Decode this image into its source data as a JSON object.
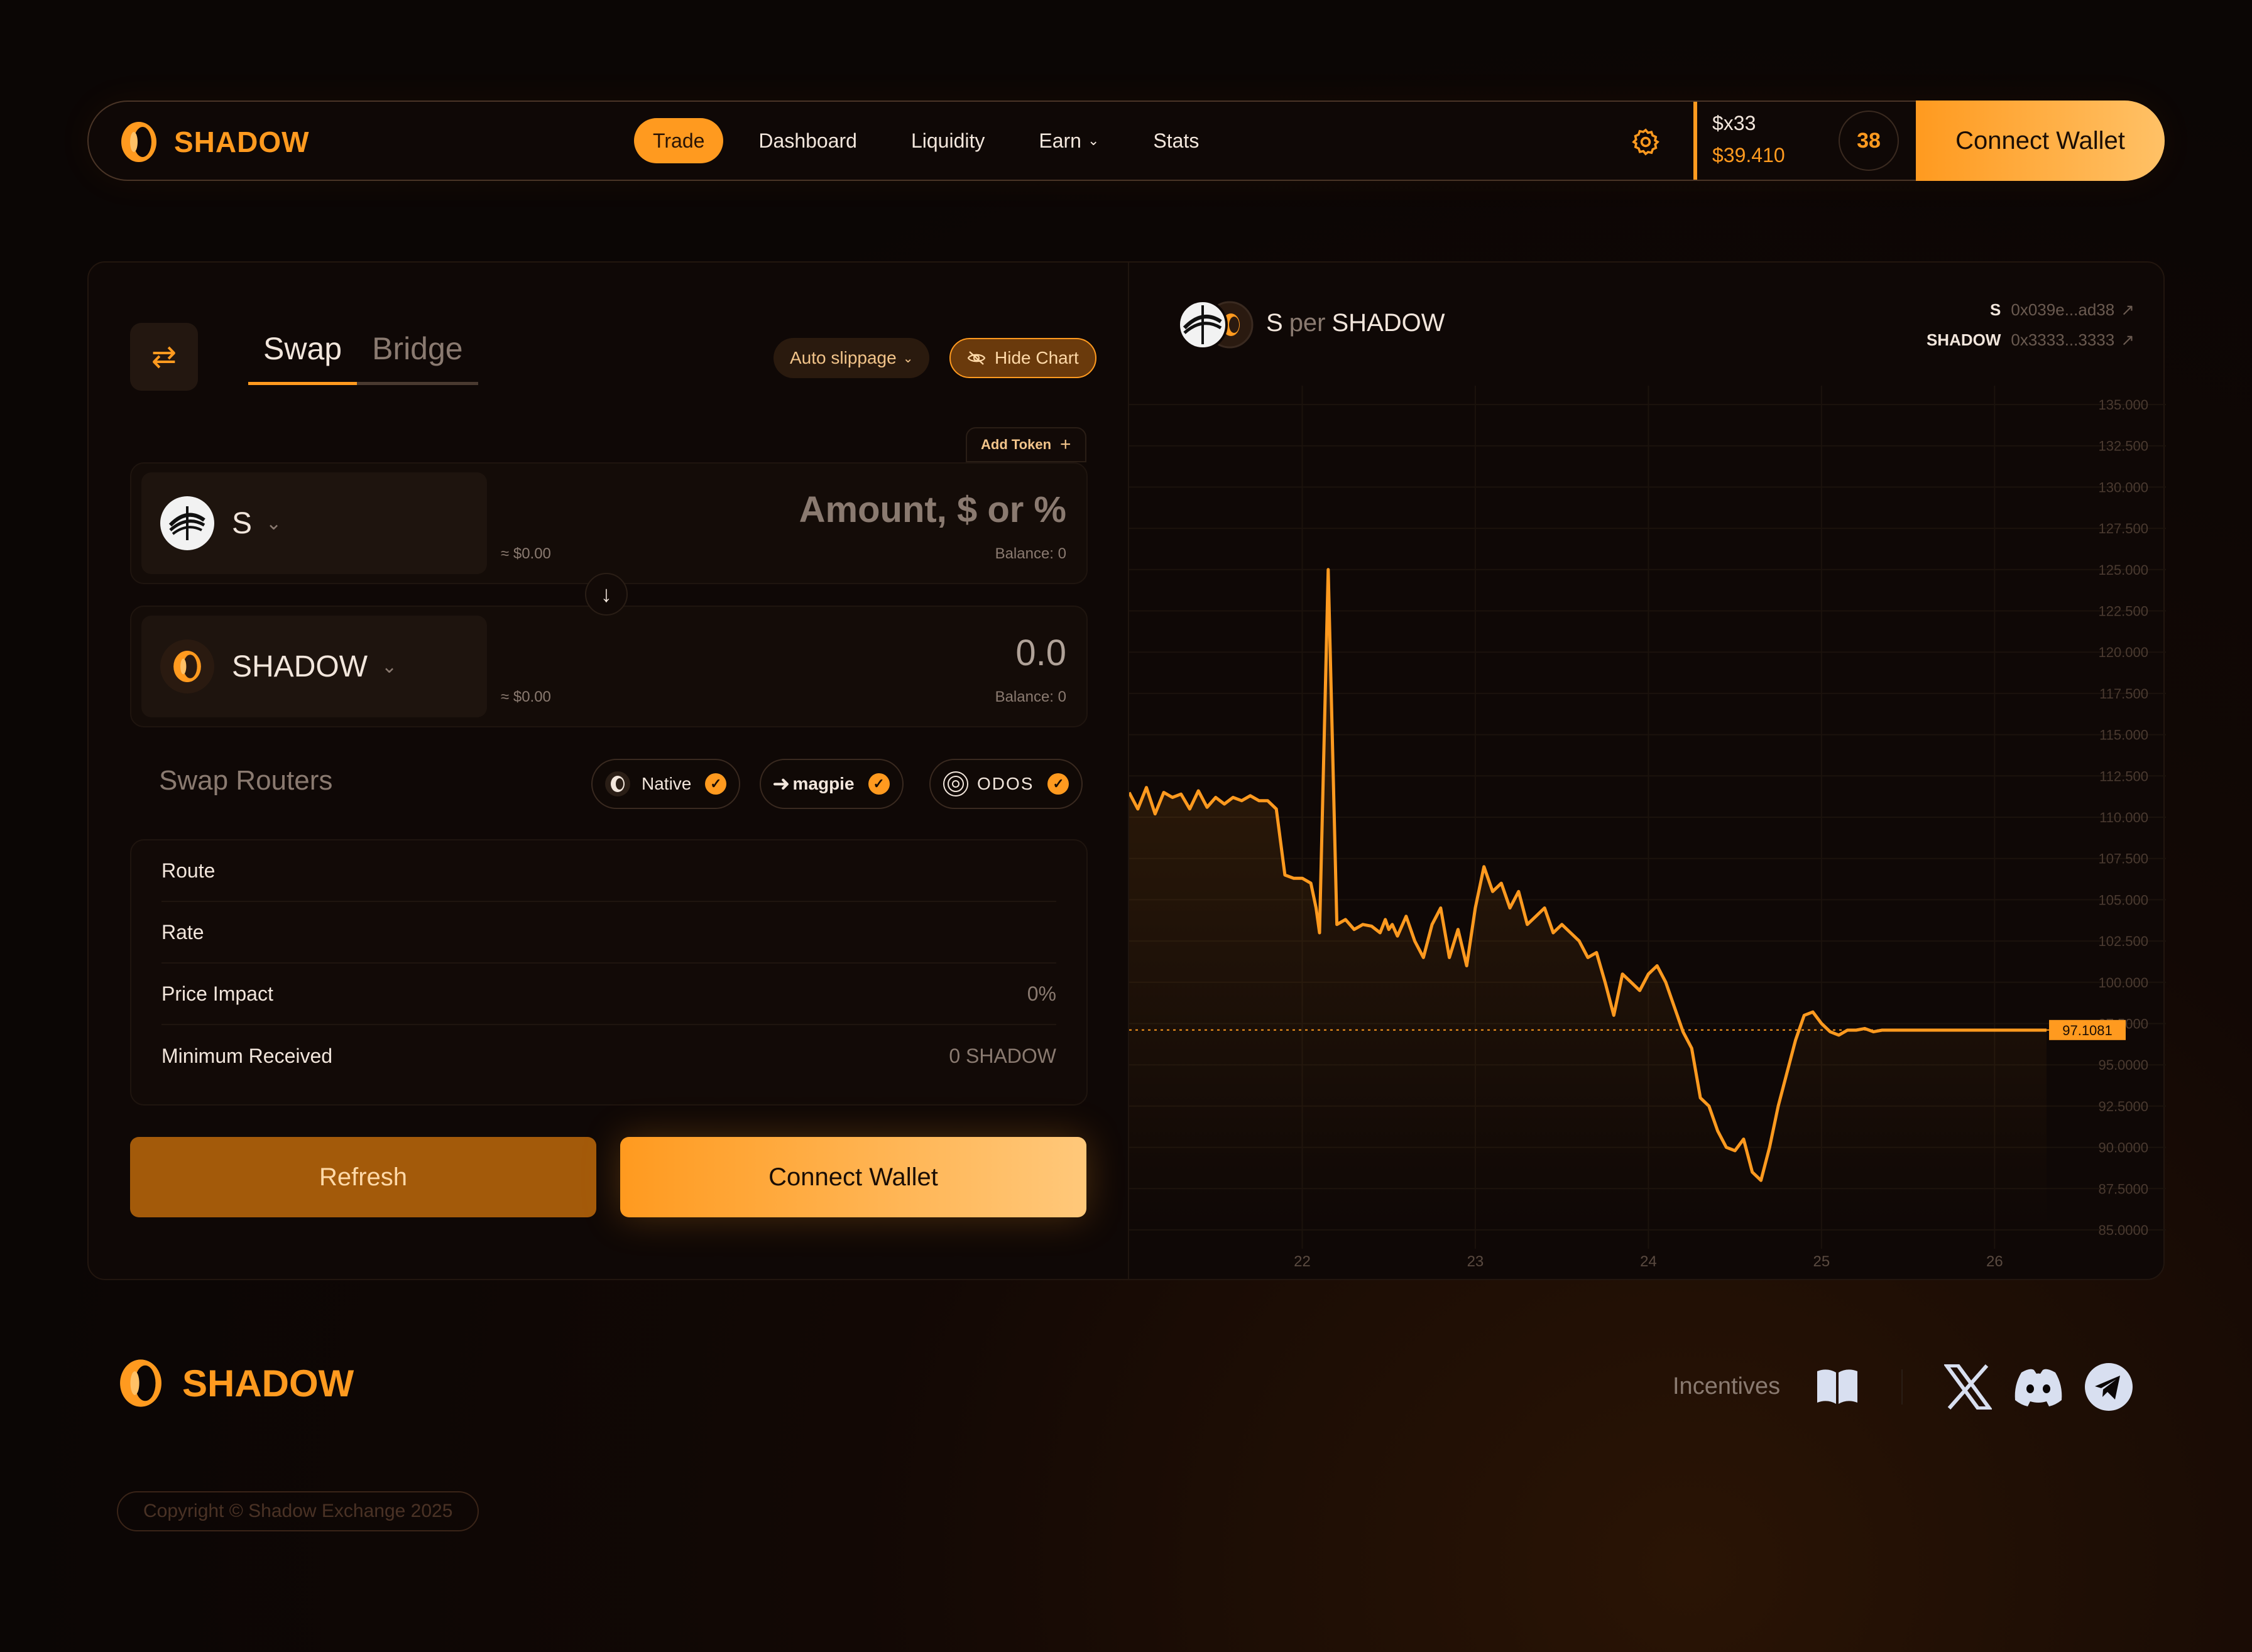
{
  "brand": {
    "name": "SHADOW"
  },
  "nav": {
    "items": [
      {
        "label": "Trade",
        "active": true
      },
      {
        "label": "Dashboard"
      },
      {
        "label": "Liquidity"
      },
      {
        "label": "Earn",
        "has_dropdown": true
      },
      {
        "label": "Stats"
      }
    ],
    "ticker_symbol": "$x33",
    "ticker_price": "$39.410",
    "badge": "38",
    "connect_label": "Connect Wallet"
  },
  "swap": {
    "tabs": [
      "Swap",
      "Bridge"
    ],
    "slippage_label": "Auto slippage",
    "hide_chart_label": "Hide Chart",
    "add_token_label": "Add Token",
    "from": {
      "symbol": "S",
      "usd": "≈ $0.00",
      "placeholder": "Amount, $ or %",
      "balance": "Balance: 0"
    },
    "to": {
      "symbol": "SHADOW",
      "usd": "≈ $0.00",
      "value": "0.0",
      "balance": "Balance: 0"
    },
    "routers_label": "Swap Routers",
    "routers": [
      "Native",
      "magpie",
      "ODOS"
    ],
    "details": [
      {
        "label": "Route",
        "value": ""
      },
      {
        "label": "Rate",
        "value": ""
      },
      {
        "label": "Price Impact",
        "value": "0%"
      },
      {
        "label": "Minimum Received",
        "value": "0 SHADOW"
      }
    ],
    "refresh_label": "Refresh",
    "connect_label": "Connect Wallet"
  },
  "pair": {
    "base": "S",
    "per": "per",
    "quote": "SHADOW",
    "base_addr_label": "S",
    "base_addr": "0x039e...ad38",
    "quote_addr_label": "SHADOW",
    "quote_addr": "0x3333...3333"
  },
  "colors": {
    "accent": "#ff9a1f",
    "background": "#0b0605",
    "line": "#ff9a1f"
  },
  "chart_data": {
    "type": "line",
    "ylim": [
      85,
      135
    ],
    "y_ticks": [
      "135.000",
      "132.500",
      "130.000",
      "127.500",
      "125.000",
      "122.500",
      "120.000",
      "117.500",
      "115.000",
      "112.500",
      "110.000",
      "107.500",
      "105.000",
      "102.500",
      "100.000",
      "97.5000",
      "95.0000",
      "92.5000",
      "90.0000",
      "87.5000",
      "85.0000"
    ],
    "x_ticks": [
      "22",
      "23",
      "24",
      "25",
      "26"
    ],
    "current_value": "97.1081",
    "xlim": [
      21.0,
      26.3
    ],
    "series": [
      {
        "x": [
          21.0,
          21.05,
          21.1,
          21.15,
          21.2,
          21.25,
          21.3,
          21.35,
          21.4,
          21.45,
          21.5,
          21.55,
          21.6,
          21.65,
          21.7,
          21.75,
          21.8,
          21.85,
          21.9,
          21.95,
          22.0,
          22.05,
          22.08,
          22.1,
          22.15,
          22.2,
          22.25,
          22.3,
          22.35,
          22.4,
          22.45,
          22.48,
          22.5,
          22.52,
          22.55,
          22.6,
          22.65,
          22.7,
          22.75,
          22.8,
          22.85,
          22.9,
          22.95,
          23.0,
          23.05,
          23.1,
          23.15,
          23.2,
          23.25,
          23.3,
          23.35,
          23.4,
          23.45,
          23.5,
          23.55,
          23.6,
          23.65,
          23.7,
          23.75,
          23.8,
          23.85,
          23.9,
          23.95,
          24.0,
          24.05,
          24.1,
          24.15,
          24.2,
          24.25,
          24.3,
          24.35,
          24.4,
          24.45,
          24.5,
          24.55,
          24.6,
          24.65,
          24.7,
          24.75,
          24.8,
          24.85,
          24.9,
          24.95,
          25.0,
          25.05,
          25.1,
          25.15,
          25.2,
          25.25,
          25.3,
          25.35,
          25.4,
          25.45,
          25.5,
          25.55,
          25.6,
          25.65,
          25.7,
          25.75,
          25.8,
          25.85,
          25.9,
          25.95,
          26.0,
          26.05,
          26.1,
          26.15,
          26.2,
          26.25,
          26.3
        ],
        "y": [
          111.5,
          110.5,
          111.8,
          110.2,
          111.5,
          111.2,
          111.4,
          110.5,
          111.6,
          110.6,
          111.2,
          110.8,
          111.2,
          111.0,
          111.3,
          111.0,
          111.0,
          110.5,
          106.5,
          106.3,
          106.3,
          106.0,
          104.5,
          103.0,
          125.0,
          103.5,
          103.8,
          103.2,
          103.5,
          103.4,
          103.0,
          103.8,
          103.2,
          103.5,
          102.8,
          104.0,
          102.5,
          101.5,
          103.5,
          104.5,
          101.5,
          103.2,
          101.0,
          104.5,
          107.0,
          105.5,
          106.0,
          104.5,
          105.5,
          103.5,
          104.0,
          104.5,
          103.0,
          103.5,
          103.0,
          102.5,
          101.5,
          101.8,
          100.0,
          98.0,
          100.5,
          100.0,
          99.5,
          100.5,
          101.0,
          100.0,
          98.5,
          97.0,
          96.0,
          93.0,
          92.5,
          91.0,
          90.0,
          89.8,
          90.5,
          88.5,
          88.0,
          90.0,
          92.5,
          94.5,
          96.5,
          98.0,
          98.2,
          97.5,
          97.0,
          96.8,
          97.1,
          97.1,
          97.2,
          97.0,
          97.1,
          97.1,
          97.1,
          97.1,
          97.1,
          97.1,
          97.1,
          97.1,
          97.1,
          97.1,
          97.1,
          97.1,
          97.1,
          97.1,
          97.1,
          97.1,
          97.1,
          97.1,
          97.1,
          97.1
        ]
      }
    ]
  },
  "footer": {
    "brand": "SHADOW",
    "incentives_label": "Incentives",
    "copyright": "Copyright © Shadow Exchange 2025",
    "icons": [
      "book-icon",
      "x-icon",
      "discord-icon",
      "telegram-icon"
    ]
  }
}
